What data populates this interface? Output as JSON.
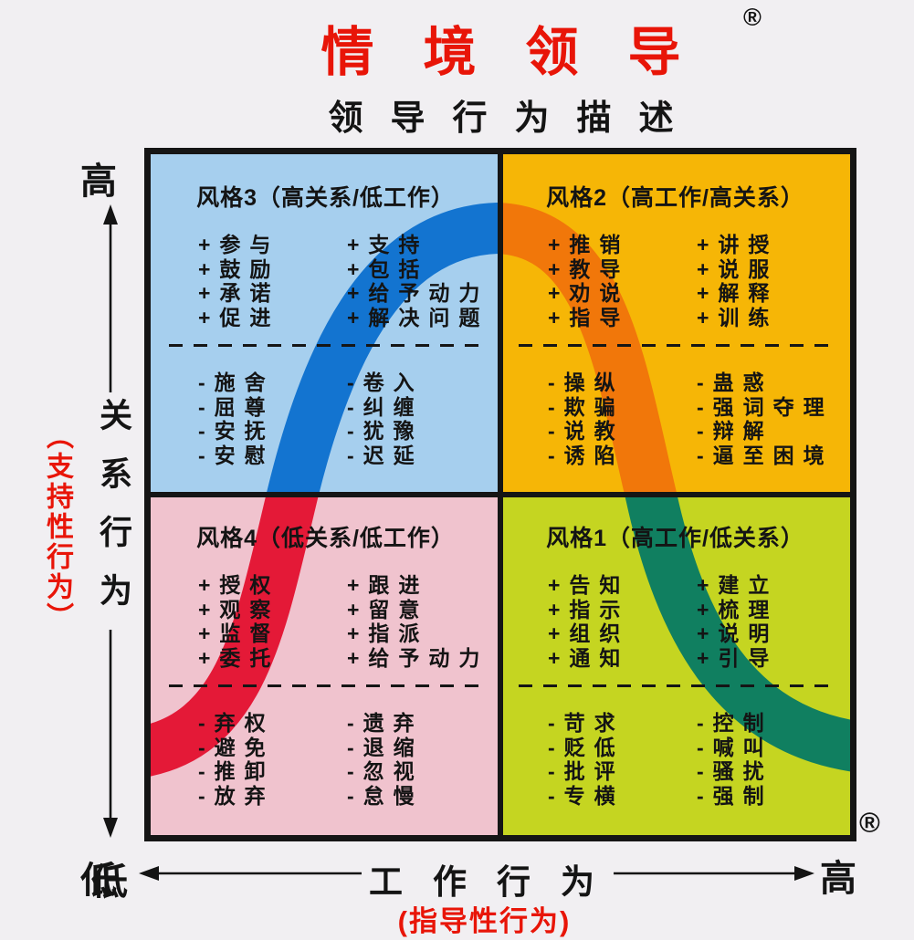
{
  "page": {
    "title": "情境领导",
    "title_registered": "®",
    "subtitle": "领导行为描述",
    "corner_registered": "®"
  },
  "axes": {
    "y_high": "高",
    "y_low": "低",
    "y_label": "关系行为",
    "y_sub_label": "（支持性行为）",
    "x_low": "低",
    "x_high": "高",
    "x_label": "工作行为",
    "x_sub_label": "(指导性行为)"
  },
  "quadrants": [
    {
      "id": "style3",
      "title": "风格3（高关系/低工作）",
      "plus_left": [
        "+参与",
        "+鼓励",
        "+承诺",
        "+促进"
      ],
      "plus_right": [
        "+支持",
        "+包括",
        "+给予动力",
        "+解决问题"
      ],
      "minus_left": [
        "-施舍",
        "-屈尊",
        "-安抚",
        "-安慰"
      ],
      "minus_right": [
        "-卷入",
        "-纠缠",
        "-犹豫",
        "-迟延"
      ]
    },
    {
      "id": "style2",
      "title": "风格2（高工作/高关系）",
      "plus_left": [
        "+推销",
        "+教导",
        "+劝说",
        "+指导"
      ],
      "plus_right": [
        "+讲授",
        "+说服",
        "+解释",
        "+训练"
      ],
      "minus_left": [
        "-操纵",
        "-欺骗",
        "-说教",
        "-诱陷"
      ],
      "minus_right": [
        "-蛊惑",
        "-强词夺理",
        "-辩解",
        "-逼至困境"
      ]
    },
    {
      "id": "style4",
      "title": "风格4（低关系/低工作）",
      "plus_left": [
        "+授权",
        "+观察",
        "+监督",
        "+委托"
      ],
      "plus_right": [
        "+跟进",
        "+留意",
        "+指派",
        "+给予动力"
      ],
      "minus_left": [
        "-弃权",
        "-避免",
        "-推卸",
        "-放弃"
      ],
      "minus_right": [
        "-遗弃",
        "-退缩",
        "-忽视",
        "-怠慢"
      ]
    },
    {
      "id": "style1",
      "title": "风格1（高工作/低关系）",
      "plus_left": [
        "+告知",
        "+指示",
        "+组织",
        "+通知"
      ],
      "plus_right": [
        "+建立",
        "+梳理",
        "+说明",
        "+引导"
      ],
      "minus_left": [
        "-苛求",
        "-贬低",
        "-批评",
        "-专横"
      ],
      "minus_right": [
        "-控制",
        "-喊叫",
        "-骚扰",
        "-强制"
      ]
    }
  ],
  "colors": {
    "title_red": "#e81508",
    "axis_sub_red": "#e81508",
    "border_black": "#151515",
    "quad_style3_bg": "#a6cfee",
    "quad_style2_bg": "#f6b606",
    "quad_style4_bg": "#f0c3ce",
    "quad_style1_bg": "#c5d521",
    "curve_red": "#e41937",
    "curve_blue": "#1374d0",
    "curve_orange": "#f1770a",
    "curve_green": "#107f60"
  }
}
